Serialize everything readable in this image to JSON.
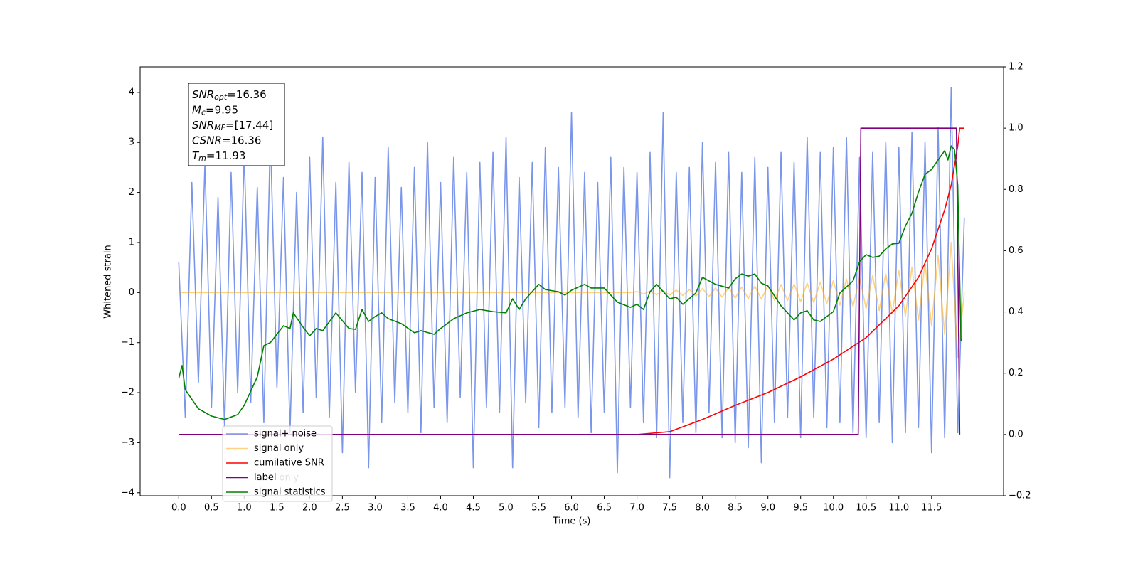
{
  "chart_data": {
    "type": "line",
    "xlabel": "Time (s)",
    "ylabel": "Whitened strain",
    "xlim": [
      -0.59,
      12.6
    ],
    "ylim": [
      -4.06,
      4.51
    ],
    "y2lim": [
      -0.2,
      1.2
    ],
    "xticks": [
      {
        "value": 0,
        "label": "0.0"
      },
      0.5,
      {
        "value": 1,
        "label": "1.0"
      },
      1.5,
      {
        "value": 2,
        "label": "2.0"
      },
      2.5,
      {
        "value": 3,
        "label": "3.0"
      },
      3.5,
      {
        "value": 4,
        "label": "4.0"
      },
      4.5,
      {
        "value": 5,
        "label": "5.0"
      },
      5.5,
      {
        "value": 6,
        "label": "6.0"
      },
      6.5,
      {
        "value": 7,
        "label": "7.0"
      },
      7.5,
      {
        "value": 8,
        "label": "8.0"
      },
      8.5,
      {
        "value": 9,
        "label": "9.0"
      },
      9.5,
      {
        "value": 10,
        "label": "10.0"
      },
      10.5,
      {
        "value": 11,
        "label": "11.0"
      },
      11.5
    ],
    "yticks": [
      {
        "value": -4,
        "label": "−4"
      },
      {
        "value": -3,
        "label": "−3"
      },
      {
        "value": -2,
        "label": "−2"
      },
      {
        "value": -1,
        "label": "−1"
      },
      0,
      1,
      2,
      3,
      4
    ],
    "y2ticks": [
      {
        "value": -0.2,
        "label": "−0.2"
      },
      {
        "value": 0,
        "label": "0.0"
      },
      0.2,
      0.4,
      0.6,
      0.8,
      {
        "value": 1,
        "label": "1.0"
      },
      1.2
    ],
    "legend": "lower left",
    "faded_legend_text": "label only",
    "annotation": [
      {
        "symbol": "SNR",
        "sub": "opt",
        "text": "=16.36"
      },
      {
        "symbol": "M",
        "sub": "c",
        "text": "=9.95"
      },
      {
        "symbol": "SNR",
        "sub": "MF",
        "text": "=[17.44]"
      },
      {
        "symbol": "CSNR",
        "sub": "",
        "text": "=16.36"
      },
      {
        "symbol": "T",
        "sub": "m",
        "text": "=11.93"
      }
    ],
    "x": [
      0,
      0.1,
      0.2,
      0.3,
      0.4,
      0.5,
      0.6,
      0.7,
      0.8,
      0.9,
      1.0,
      1.1,
      1.2,
      1.3,
      1.4,
      1.5,
      1.6,
      1.7,
      1.8,
      1.9,
      2.0,
      2.1,
      2.2,
      2.3,
      2.4,
      2.5,
      2.6,
      2.7,
      2.8,
      2.9,
      3.0,
      3.1,
      3.2,
      3.3,
      3.4,
      3.5,
      3.6,
      3.7,
      3.8,
      3.9,
      4.0,
      4.1,
      4.2,
      4.3,
      4.4,
      4.5,
      4.6,
      4.7,
      4.8,
      4.9,
      5.0,
      5.1,
      5.2,
      5.3,
      5.4,
      5.5,
      5.6,
      5.7,
      5.8,
      5.9,
      6.0,
      6.1,
      6.2,
      6.3,
      6.4,
      6.5,
      6.6,
      6.7,
      6.8,
      6.9,
      7.0,
      7.1,
      7.2,
      7.3,
      7.4,
      7.5,
      7.6,
      7.7,
      7.8,
      7.9,
      8.0,
      8.1,
      8.2,
      8.3,
      8.4,
      8.5,
      8.6,
      8.7,
      8.8,
      8.9,
      9.0,
      9.1,
      9.2,
      9.3,
      9.4,
      9.5,
      9.6,
      9.7,
      9.8,
      9.9,
      10.0,
      10.1,
      10.2,
      10.3,
      10.4,
      10.5,
      10.6,
      10.7,
      10.8,
      10.9,
      11.0,
      11.1,
      11.2,
      11.3,
      11.4,
      11.5,
      11.6,
      11.7,
      11.8,
      11.9,
      12.0
    ],
    "series": [
      {
        "name": "signal+ noise",
        "color": "#4169e1",
        "alpha": 0.7,
        "values": [
          0.6,
          -2.5,
          2.2,
          -1.8,
          2.6,
          -2.3,
          1.9,
          -2.7,
          2.4,
          -2.0,
          2.8,
          -2.2,
          2.1,
          -2.6,
          3.2,
          -1.9,
          2.3,
          -2.8,
          2.0,
          -2.4,
          2.7,
          -2.1,
          3.1,
          -2.5,
          2.2,
          -3.2,
          2.6,
          -2.0,
          2.4,
          -3.5,
          2.3,
          -2.6,
          2.9,
          -2.2,
          2.1,
          -2.4,
          2.5,
          -2.8,
          3.0,
          -2.3,
          2.2,
          -2.6,
          2.7,
          -2.1,
          2.4,
          -3.5,
          2.6,
          -2.3,
          2.8,
          -2.4,
          3.1,
          -3.5,
          2.3,
          -2.2,
          2.6,
          -2.7,
          2.9,
          -2.4,
          2.5,
          -2.3,
          3.6,
          -2.5,
          2.4,
          -2.8,
          2.2,
          -2.4,
          2.7,
          -3.6,
          2.5,
          -2.3,
          2.4,
          -2.6,
          2.8,
          -2.9,
          3.6,
          -3.7,
          2.4,
          -2.6,
          2.5,
          -2.8,
          3.0,
          -2.4,
          2.6,
          -2.9,
          2.8,
          -3.0,
          2.4,
          -3.1,
          2.7,
          -3.4,
          2.5,
          -2.6,
          2.8,
          -2.5,
          2.6,
          -2.9,
          3.1,
          -2.5,
          2.8,
          -2.7,
          2.9,
          -2.6,
          3.1,
          -2.8,
          2.7,
          -2.9,
          2.8,
          -2.6,
          3.0,
          -3.0,
          2.9,
          -2.8,
          3.2,
          -2.7,
          3.0,
          -3.2,
          3.3,
          -2.9,
          4.1,
          -2.8,
          1.5
        ]
      },
      {
        "name": "signal only",
        "color": "#ffa500",
        "alpha": 0.5,
        "values": [
          0,
          0,
          0,
          0,
          0,
          0,
          0,
          0,
          0,
          0,
          0,
          0,
          0,
          0,
          0,
          0,
          0,
          0,
          0,
          0,
          0,
          0,
          0,
          0,
          0,
          0,
          0,
          0,
          0,
          0,
          0,
          0,
          0,
          0,
          0,
          0,
          0,
          0,
          0,
          0,
          0,
          0,
          0,
          0,
          0,
          0,
          0,
          0,
          0,
          0,
          0,
          0,
          0,
          0,
          0,
          0,
          0,
          0,
          0,
          0,
          0,
          0,
          0,
          0,
          0,
          0,
          0,
          0,
          0,
          0,
          0.02,
          -0.03,
          0.03,
          -0.04,
          0.04,
          -0.05,
          0.05,
          -0.06,
          0.06,
          -0.07,
          0.08,
          -0.08,
          0.09,
          -0.09,
          0.1,
          -0.11,
          0.11,
          -0.12,
          0.13,
          -0.13,
          0.14,
          -0.15,
          0.16,
          -0.16,
          0.17,
          -0.18,
          0.19,
          -0.2,
          0.21,
          -0.22,
          0.24,
          -0.25,
          0.27,
          -0.28,
          0.3,
          -0.32,
          0.34,
          -0.36,
          0.38,
          -0.41,
          0.44,
          -0.47,
          0.51,
          -0.55,
          0.6,
          -0.66,
          0.74,
          -0.84,
          1.0,
          -1.3,
          0
        ]
      },
      {
        "name": "cumilative SNR",
        "color": "#ff0000",
        "axis": "y2",
        "x": [
          0,
          7.0,
          7.5,
          8.0,
          8.5,
          9.0,
          9.5,
          10.0,
          10.5,
          11.0,
          11.3,
          11.5,
          11.7,
          11.8,
          11.9,
          11.93,
          12.0
        ],
        "values": [
          0,
          0,
          0.009,
          0.049,
          0.095,
          0.137,
          0.188,
          0.246,
          0.316,
          0.42,
          0.513,
          0.606,
          0.733,
          0.814,
          0.942,
          1,
          1
        ]
      },
      {
        "name": "label",
        "color": "#800080",
        "axis": "y2",
        "x": [
          0,
          10.38,
          10.42,
          11.88,
          11.93
        ],
        "values": [
          0,
          0,
          1,
          1,
          0
        ]
      },
      {
        "name": "signal statistics",
        "color": "#008000",
        "axis": "y2",
        "x": [
          0,
          0.05,
          0.1,
          0.3,
          0.5,
          0.7,
          0.9,
          1.0,
          1.2,
          1.3,
          1.4,
          1.5,
          1.6,
          1.7,
          1.75,
          1.9,
          2.0,
          2.1,
          2.2,
          2.4,
          2.6,
          2.7,
          2.8,
          2.9,
          3.0,
          3.1,
          3.2,
          3.4,
          3.6,
          3.7,
          3.9,
          4.0,
          4.2,
          4.4,
          4.6,
          4.8,
          5.0,
          5.1,
          5.2,
          5.3,
          5.5,
          5.6,
          5.8,
          5.9,
          6.0,
          6.2,
          6.3,
          6.5,
          6.7,
          6.9,
          7.0,
          7.1,
          7.2,
          7.3,
          7.5,
          7.6,
          7.7,
          7.9,
          8.0,
          8.2,
          8.4,
          8.5,
          8.6,
          8.7,
          8.8,
          8.9,
          9.0,
          9.2,
          9.4,
          9.5,
          9.6,
          9.7,
          9.8,
          9.9,
          10.0,
          10.1,
          10.3,
          10.4,
          10.5,
          10.6,
          10.7,
          10.8,
          10.9,
          11.0,
          11.1,
          11.2,
          11.3,
          11.4,
          11.5,
          11.6,
          11.7,
          11.75,
          11.8,
          11.85,
          11.9,
          11.95
        ],
        "values": [
          0.183,
          0.225,
          0.146,
          0.084,
          0.06,
          0.049,
          0.065,
          0.095,
          0.188,
          0.29,
          0.3,
          0.327,
          0.355,
          0.346,
          0.397,
          0.35,
          0.322,
          0.346,
          0.339,
          0.397,
          0.346,
          0.343,
          0.408,
          0.369,
          0.385,
          0.397,
          0.378,
          0.362,
          0.332,
          0.339,
          0.327,
          0.346,
          0.378,
          0.397,
          0.408,
          0.401,
          0.397,
          0.443,
          0.408,
          0.443,
          0.49,
          0.473,
          0.466,
          0.455,
          0.471,
          0.49,
          0.478,
          0.478,
          0.432,
          0.415,
          0.425,
          0.408,
          0.466,
          0.49,
          0.443,
          0.448,
          0.425,
          0.462,
          0.513,
          0.49,
          0.478,
          0.508,
          0.524,
          0.517,
          0.524,
          0.494,
          0.485,
          0.42,
          0.374,
          0.397,
          0.404,
          0.374,
          0.369,
          0.385,
          0.401,
          0.462,
          0.501,
          0.564,
          0.587,
          0.578,
          0.582,
          0.606,
          0.622,
          0.624,
          0.68,
          0.722,
          0.791,
          0.849,
          0.865,
          0.896,
          0.926,
          0.896,
          0.942,
          0.93,
          0.814,
          0.304
        ]
      }
    ]
  }
}
